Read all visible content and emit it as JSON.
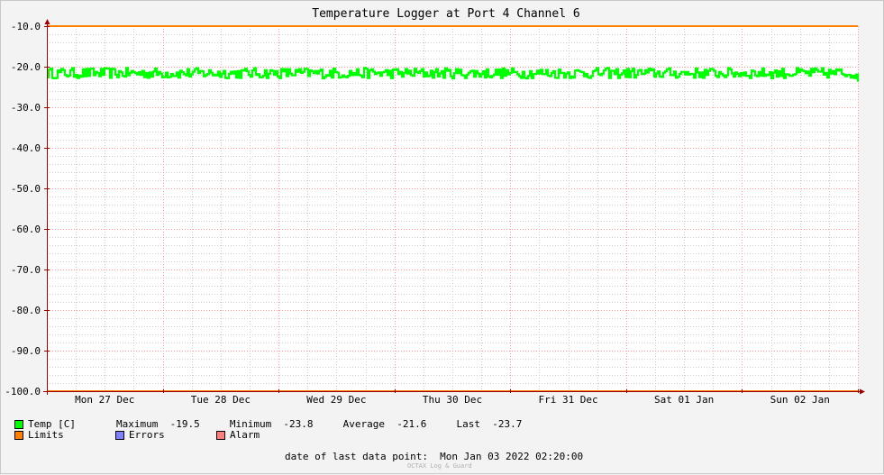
{
  "chart_data": {
    "type": "line",
    "title": "Temperature Logger at Port 4 Channel 6",
    "ylim": [
      -100,
      -10
    ],
    "y_ticks": [
      "-10.0",
      "-20.0",
      "-30.0",
      "-40.0",
      "-50.0",
      "-60.0",
      "-70.0",
      "-80.0",
      "-90.0",
      "-100.0"
    ],
    "y_tick_values": [
      -10,
      -20,
      -30,
      -40,
      -50,
      -60,
      -70,
      -80,
      -90,
      -100
    ],
    "x_ticks": [
      "Mon 27 Dec",
      "Tue 28 Dec",
      "Wed 29 Dec",
      "Thu 30 Dec",
      "Fri 31 Dec",
      "Sat 01 Jan",
      "Sun 02 Jan"
    ],
    "x_range_days": 7,
    "grid": true,
    "limit_line": {
      "name": "Limits",
      "value": -10,
      "color": "#ff7f00"
    },
    "series": [
      {
        "name": "Temp [C]",
        "color": "#00ff00",
        "min": -23.8,
        "max": -19.5,
        "avg": -21.6,
        "last": -23.7
      }
    ],
    "colors": {
      "grid_major": "#ff9999",
      "grid_minor": "#cccccc",
      "axis": "#990000"
    }
  },
  "legend": {
    "row1": {
      "label": "Temp [C]",
      "stats": "Maximum  -19.5     Minimum  -23.8     Average  -21.6     Last  -23.7"
    },
    "limits_label": "Limits",
    "errors_label": "Errors",
    "alarm_label": "Alarm",
    "colors": {
      "temp": "#00ff00",
      "limits": "#ff7f00",
      "errors": "#7f7fff",
      "alarm": "#ff7f7f"
    }
  },
  "footer": {
    "last_data_point": "date of last data point:  Mon Jan 03 2022 02:20:00",
    "watermark": "OCTAX Log & Guard"
  }
}
